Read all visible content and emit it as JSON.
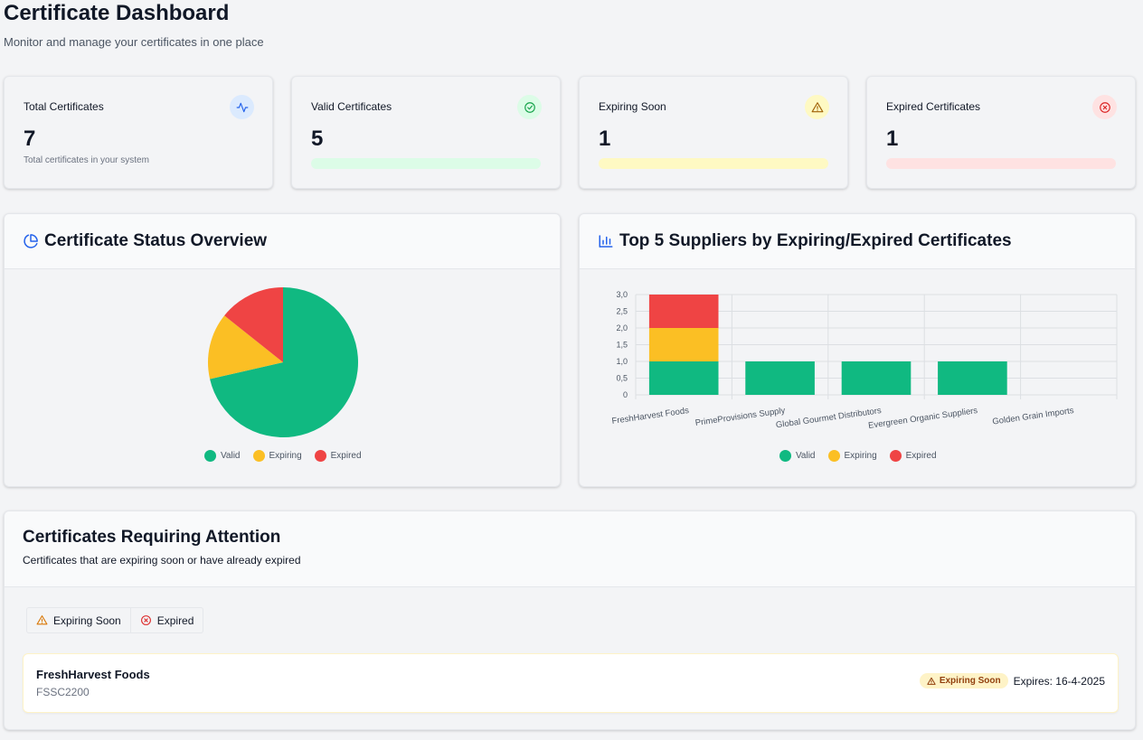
{
  "header": {
    "title": "Certificate Dashboard",
    "subtitle": "Monitor and manage your certificates in one place"
  },
  "stats": [
    {
      "label": "Total Certificates",
      "value": "7",
      "note": "Total certificates in your system",
      "icon": "activity-icon"
    },
    {
      "label": "Valid Certificates",
      "value": "5",
      "icon": "check-circle-icon",
      "bar_color": "#dcfce7"
    },
    {
      "label": "Expiring Soon",
      "value": "1",
      "icon": "warning-icon",
      "bar_color": "#fef9c3"
    },
    {
      "label": "Expired Certificates",
      "value": "1",
      "icon": "x-circle-icon",
      "bar_color": "#fee2e2"
    }
  ],
  "colors": {
    "valid": "#10b981",
    "expiring": "#fbbf24",
    "expired": "#ef4444",
    "accent": "#2563eb"
  },
  "status_panel": {
    "title": "Certificate Status Overview",
    "icon": "pie-chart-icon"
  },
  "suppliers_panel": {
    "title": "Top 5 Suppliers by Expiring/Expired Certificates",
    "icon": "bar-chart-icon"
  },
  "legend": [
    "Valid",
    "Expiring",
    "Expired"
  ],
  "chart_data": [
    {
      "type": "pie",
      "labels": [
        "Valid",
        "Expiring",
        "Expired"
      ],
      "values": [
        5,
        1,
        1
      ]
    },
    {
      "type": "bar",
      "stacked": true,
      "categories": [
        "FreshHarvest Foods",
        "PrimeProvisions Supply",
        "Global Gourmet Distributors",
        "Evergreen Organic Suppliers",
        "Golden Grain Imports"
      ],
      "series": [
        {
          "name": "Valid",
          "values": [
            1,
            1,
            1,
            1,
            0
          ]
        },
        {
          "name": "Expiring",
          "values": [
            1,
            0,
            0,
            0,
            0
          ]
        },
        {
          "name": "Expired",
          "values": [
            1,
            0,
            0,
            0,
            0
          ]
        }
      ],
      "ylim": [
        0,
        3
      ],
      "yticks": [
        "0",
        "0,5",
        "1,0",
        "1,5",
        "2,0",
        "2,5",
        "3,0"
      ],
      "grid": true,
      "legend_position": "bottom"
    }
  ],
  "attention": {
    "title": "Certificates Requiring Attention",
    "subtitle": "Certificates that are expiring soon or have already expired",
    "tabs": [
      {
        "label": "Expiring Soon",
        "icon": "warning-icon"
      },
      {
        "label": "Expired",
        "icon": "x-circle-icon"
      }
    ],
    "items": [
      {
        "supplier": "FreshHarvest Foods",
        "type": "FSSC2200",
        "badge": "Expiring Soon",
        "expires": "Expires: 16-4-2025"
      }
    ]
  }
}
